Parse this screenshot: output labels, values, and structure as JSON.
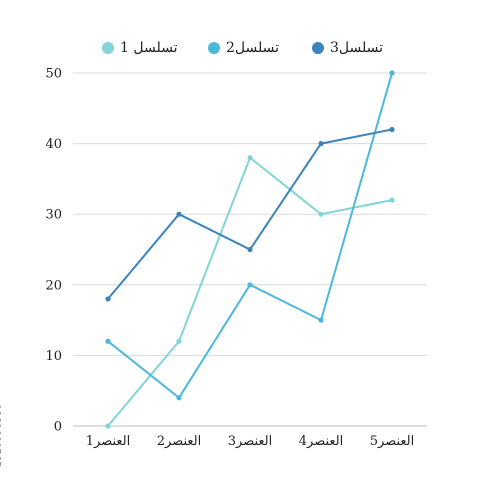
{
  "colors": {
    "series1": "#82d4d6",
    "series2": "#4bb8db",
    "series3": "#3a84bb",
    "grid": "#d9d9d9",
    "axis": "#bdbdbd"
  },
  "legend": {
    "item1": "تسلسل 1",
    "item2": "تسلسل2",
    "item3": "تسلسل3"
  },
  "stock_id": "1520096580",
  "chart_data": {
    "type": "line",
    "categories": [
      "العنصر1",
      "العنصر2",
      "العنصر3",
      "العنصر4",
      "العنصر5"
    ],
    "series": [
      {
        "name": "تسلسل 1",
        "values": [
          0,
          12,
          38,
          30,
          32
        ]
      },
      {
        "name": "تسلسل2",
        "values": [
          12,
          4,
          20,
          15,
          50
        ]
      },
      {
        "name": "تسلسل3",
        "values": [
          18,
          30,
          25,
          40,
          42
        ]
      }
    ],
    "yticks": [
      0,
      10,
      20,
      30,
      40,
      50
    ],
    "ylim": [
      0,
      50
    ],
    "grid": true,
    "legend_position": "top"
  }
}
